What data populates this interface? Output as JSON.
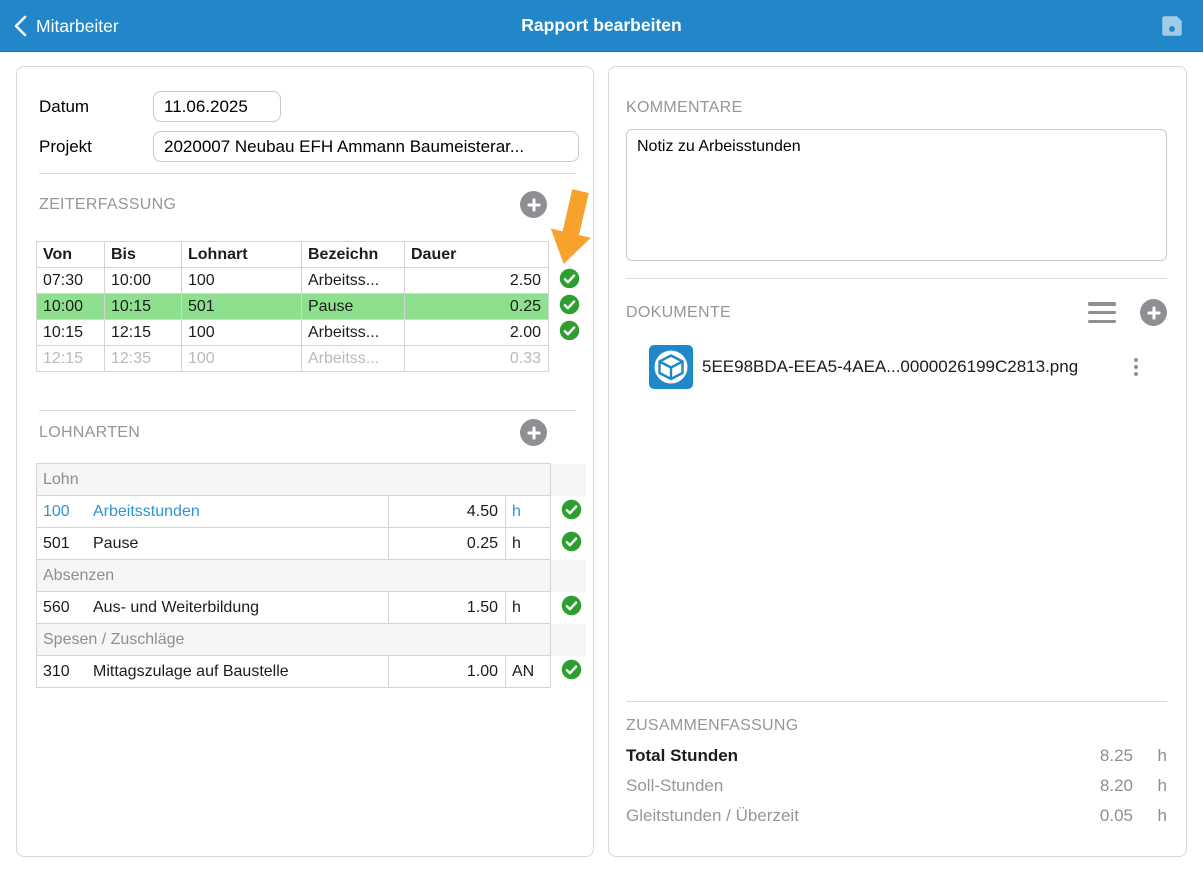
{
  "header": {
    "back_label": "Mitarbeiter",
    "title": "Rapport bearbeiten"
  },
  "form": {
    "datum_label": "Datum",
    "datum_value": "11.06.2025",
    "projekt_label": "Projekt",
    "projekt_value": "2020007 Neubau EFH Ammann Baumeisterar..."
  },
  "zeiterfassung": {
    "title": "ZEITERFASSUNG",
    "columns": [
      "Von",
      "Bis",
      "Lohnart",
      "Bezeichn",
      "Dauer"
    ],
    "rows": [
      {
        "von": "07:30",
        "bis": "10:00",
        "lohnart": "100",
        "bezeichn": "Arbeitss...",
        "dauer": "2.50",
        "checked": true,
        "state": "normal"
      },
      {
        "von": "10:00",
        "bis": "10:15",
        "lohnart": "501",
        "bezeichn": "Pause",
        "dauer": "0.25",
        "checked": true,
        "state": "selected"
      },
      {
        "von": "10:15",
        "bis": "12:15",
        "lohnart": "100",
        "bezeichn": "Arbeitss...",
        "dauer": "2.00",
        "checked": true,
        "state": "normal"
      },
      {
        "von": "12:15",
        "bis": "12:35",
        "lohnart": "100",
        "bezeichn": "Arbeitss...",
        "dauer": "0.33",
        "checked": false,
        "state": "disabled"
      }
    ]
  },
  "lohnarten": {
    "title": "LOHNARTEN",
    "groups": [
      {
        "label": "Lohn",
        "rows": [
          {
            "code": "100",
            "name": "Arbeitsstunden",
            "value": "4.50",
            "unit": "h",
            "checked": true,
            "highlight": true
          },
          {
            "code": "501",
            "name": "Pause",
            "value": "0.25",
            "unit": "h",
            "checked": true,
            "highlight": false
          }
        ]
      },
      {
        "label": "Absenzen",
        "rows": [
          {
            "code": "560",
            "name": "Aus- und Weiterbildung",
            "value": "1.50",
            "unit": "h",
            "checked": true,
            "highlight": false
          }
        ]
      },
      {
        "label": "Spesen / Zuschläge",
        "rows": [
          {
            "code": "310",
            "name": "Mittagszulage auf Baustelle",
            "value": "1.00",
            "unit": "AN",
            "checked": true,
            "highlight": false
          }
        ]
      }
    ]
  },
  "kommentare": {
    "title": "KOMMENTARE",
    "text": "Notiz zu Arbeisstunden"
  },
  "dokumente": {
    "title": "DOKUMENTE",
    "file_name": "5EE98BDA-EEA5-4AEA...0000026199C2813.png"
  },
  "zusammenfassung": {
    "title": "ZUSAMMENFASSUNG",
    "rows": [
      {
        "label": "Total Stunden",
        "value": "8.25",
        "unit": "h",
        "bold": true
      },
      {
        "label": "Soll-Stunden",
        "value": "8.20",
        "unit": "h",
        "bold": false
      },
      {
        "label": "Gleitstunden / Überzeit",
        "value": "0.05",
        "unit": "h",
        "bold": false
      }
    ]
  },
  "colors": {
    "accent_blue": "#2187c8",
    "link_blue": "#2d95d3",
    "check_green": "#2f9e31",
    "row_highlight_green": "#8ee08e",
    "arrow_orange": "#f7a22d",
    "icon_gray": "#8e8e93"
  }
}
